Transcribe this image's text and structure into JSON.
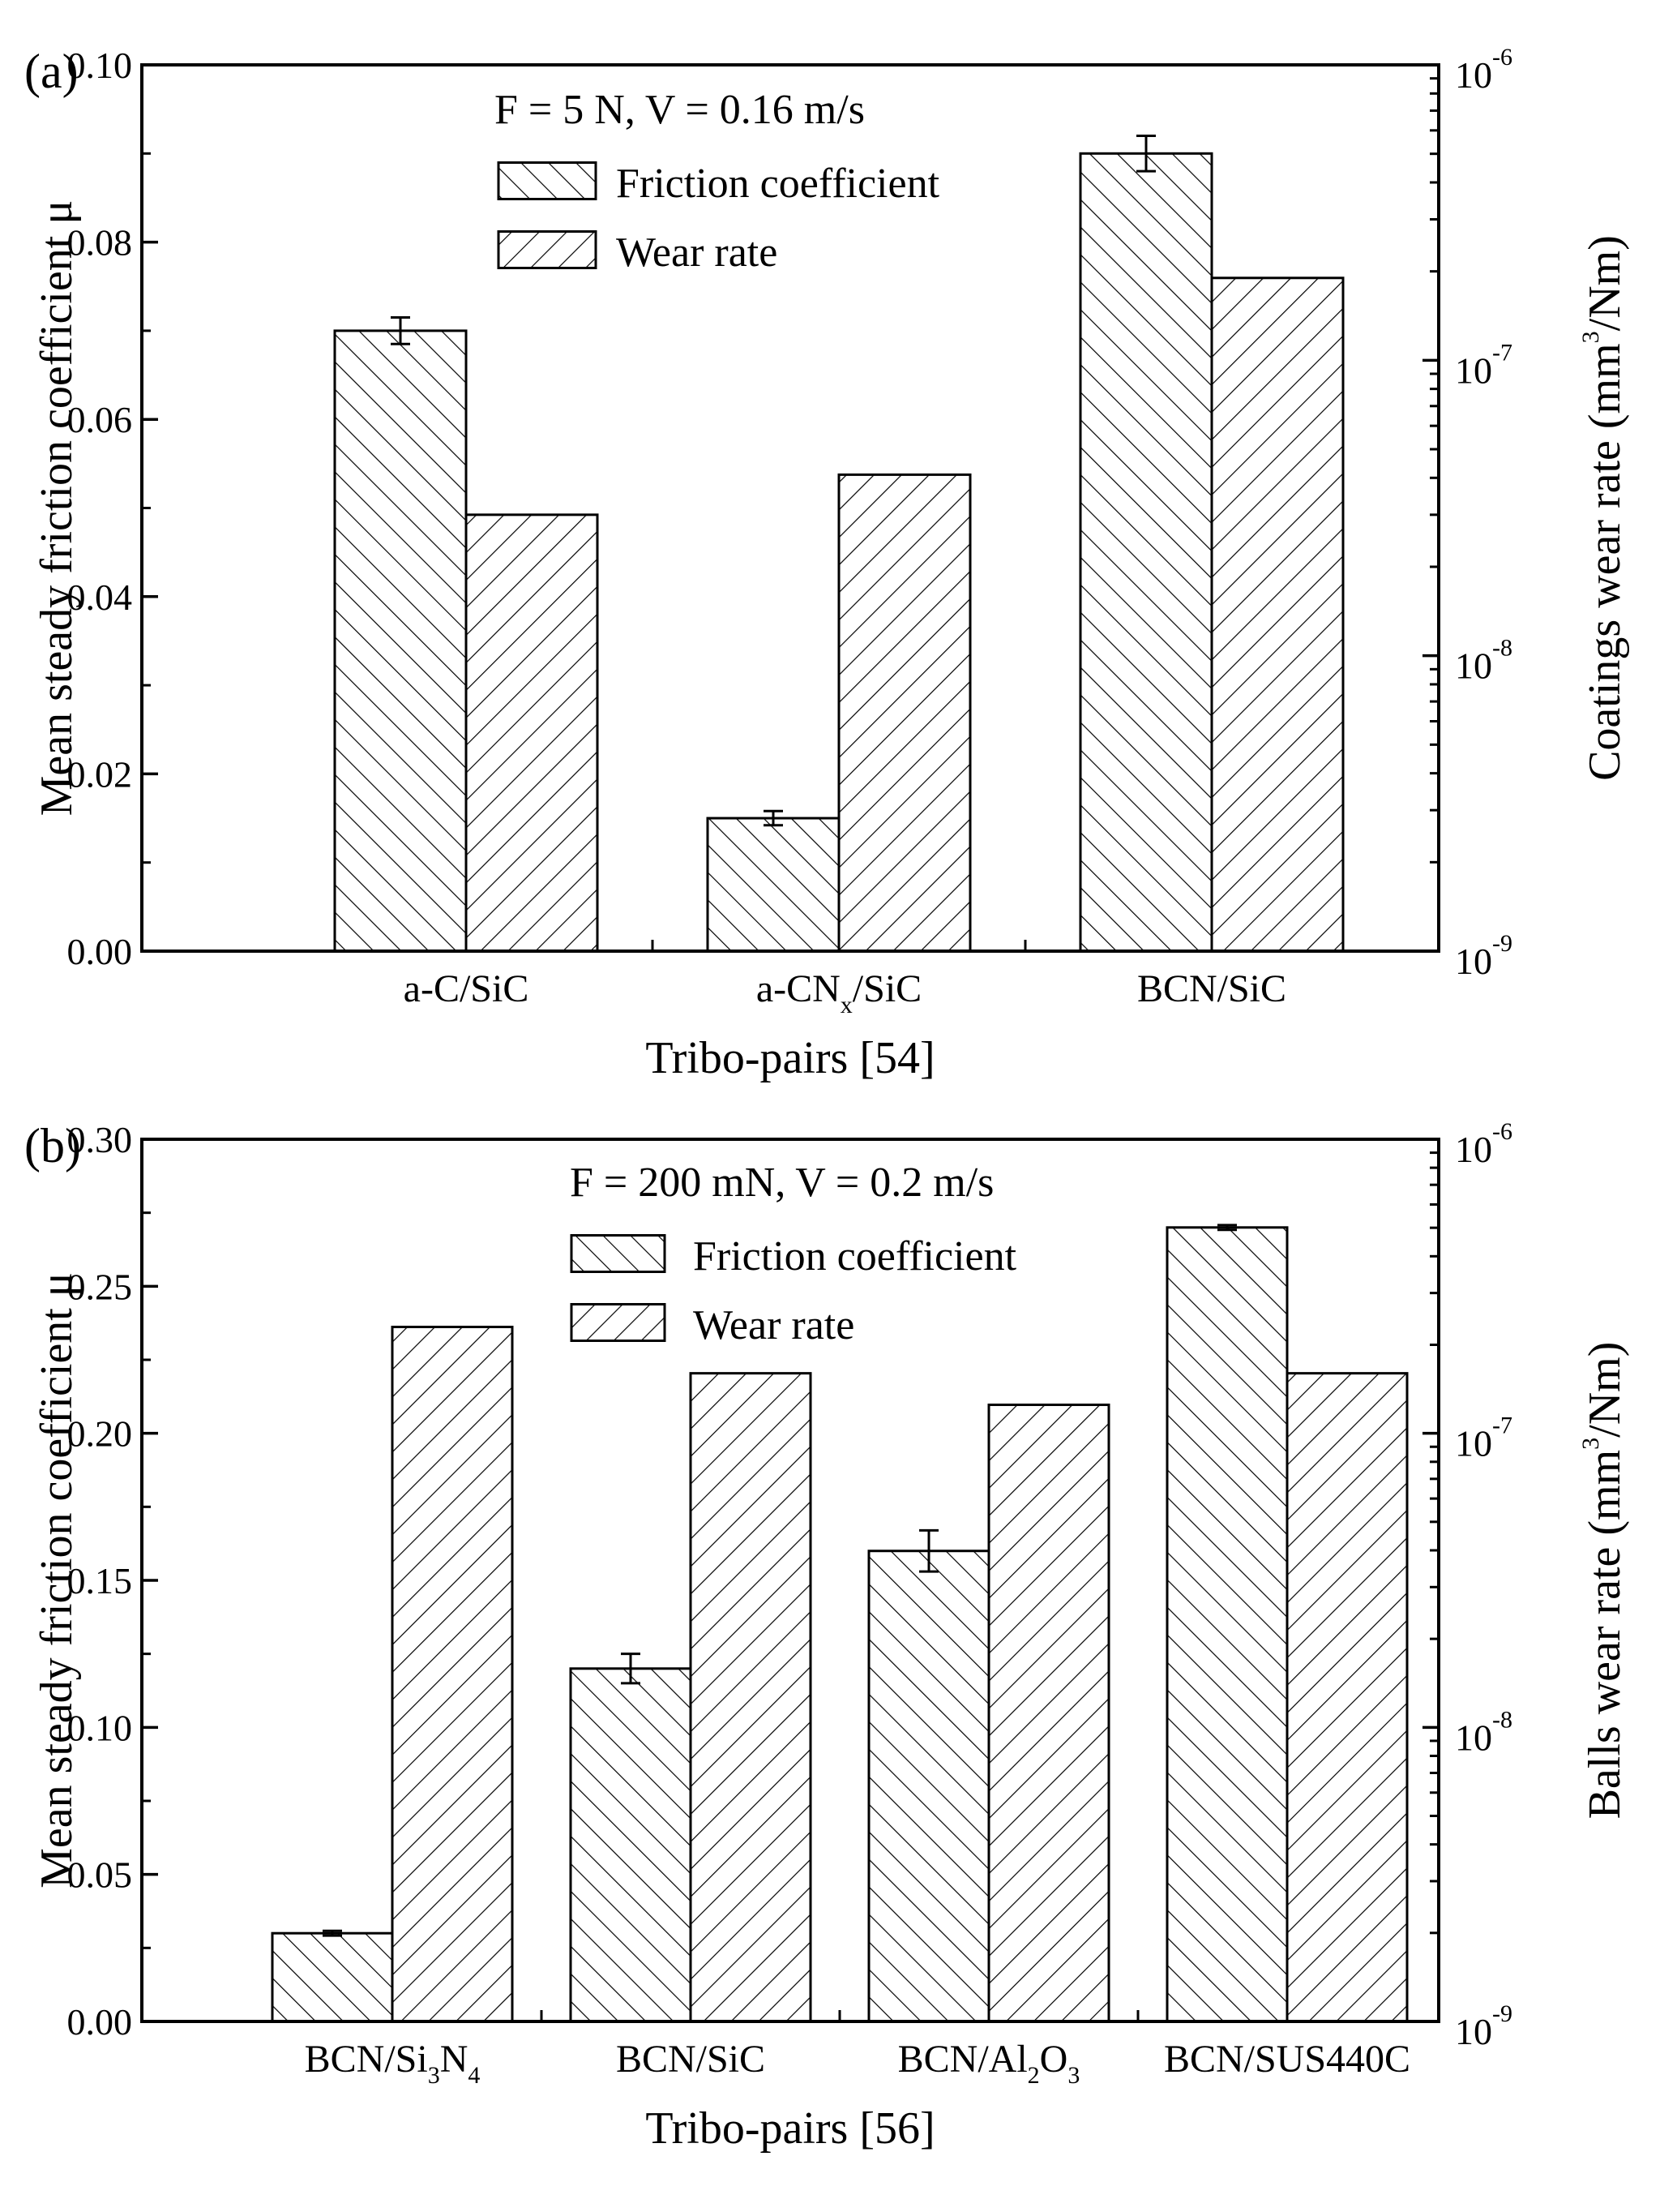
{
  "figure": {
    "bg": "#ffffff",
    "ink": "#000000"
  },
  "chart_data": [
    {
      "panel": "(a)",
      "type": "bar",
      "categories": [
        {
          "name": "a-C/SiC",
          "parts": [
            {
              "t": "a-C/SiC",
              "s": 0
            }
          ]
        },
        {
          "name": "a-CNx/SiC",
          "parts": [
            {
              "t": "a-CN",
              "s": 0
            },
            {
              "t": "x",
              "s": -1
            },
            {
              "t": "/SiC",
              "s": 0
            }
          ]
        },
        {
          "name": "BCN/SiC",
          "parts": [
            {
              "t": "BCN/SiC",
              "s": 0
            }
          ]
        }
      ],
      "series": [
        {
          "name": "Friction coefficient",
          "axis": "left",
          "values": [
            0.07,
            0.015,
            0.09
          ],
          "errors": [
            0.0015,
            0.0008,
            0.002
          ],
          "hatch": "back"
        },
        {
          "name": "Wear rate",
          "axis": "right",
          "values": [
            3e-08,
            4.1e-08,
            1.9e-07
          ],
          "hatch": "fwd"
        }
      ],
      "ylabel": "Mean steady friction coefficient μ",
      "ylim": [
        0,
        0.1
      ],
      "yticks": [
        "0.00",
        "0.02",
        "0.04",
        "0.06",
        "0.08",
        "0.10"
      ],
      "y2label": {
        "before": "Coatings wear rate (mm",
        "sup": "3",
        "after": "/Nm)"
      },
      "y2lim": [
        1e-09,
        1e-06
      ],
      "y2ticks": [
        {
          "base": "10",
          "exp": "-9"
        },
        {
          "base": "10",
          "exp": "-8"
        },
        {
          "base": "10",
          "exp": "-7"
        },
        {
          "base": "10",
          "exp": "-6"
        }
      ],
      "xlabel": "Tribo-pairs [54]",
      "legend_title": "F = 5 N, V = 0.16 m/s",
      "legend_position": "top-center"
    },
    {
      "panel": "(b)",
      "type": "bar",
      "categories": [
        {
          "name": "BCN/Si3N4",
          "parts": [
            {
              "t": "BCN/Si",
              "s": 0
            },
            {
              "t": "3",
              "s": -1
            },
            {
              "t": "N",
              "s": 0
            },
            {
              "t": "4",
              "s": -1
            }
          ]
        },
        {
          "name": "BCN/SiC",
          "parts": [
            {
              "t": "BCN/SiC",
              "s": 0
            }
          ]
        },
        {
          "name": "BCN/Al2O3",
          "parts": [
            {
              "t": "BCN/Al",
              "s": 0
            },
            {
              "t": "2",
              "s": -1
            },
            {
              "t": "O",
              "s": 0
            },
            {
              "t": "3",
              "s": -1
            }
          ]
        },
        {
          "name": "BCN/SUS440C",
          "parts": [
            {
              "t": "BCN/SUS440C",
              "s": 0
            }
          ]
        }
      ],
      "series": [
        {
          "name": "Friction coefficient",
          "axis": "left",
          "values": [
            0.03,
            0.12,
            0.16,
            0.27
          ],
          "errors": [
            0.0008,
            0.005,
            0.007,
            0.0008
          ],
          "hatch": "back"
        },
        {
          "name": "Wear rate",
          "axis": "right",
          "values": [
            2.3e-07,
            1.6e-07,
            1.25e-07,
            1.6e-07
          ],
          "hatch": "fwd"
        }
      ],
      "ylabel": "Mean steady friction coefficient μ",
      "ylim": [
        0,
        0.3
      ],
      "yticks": [
        "0.00",
        "0.05",
        "0.10",
        "0.15",
        "0.20",
        "0.25",
        "0.30"
      ],
      "y2label": {
        "before": "Balls wear rate (mm",
        "sup": "3",
        "after": "/Nm)"
      },
      "y2lim": [
        1e-09,
        1e-06
      ],
      "y2ticks": [
        {
          "base": "10",
          "exp": "-9"
        },
        {
          "base": "10",
          "exp": "-8"
        },
        {
          "base": "10",
          "exp": "-7"
        },
        {
          "base": "10",
          "exp": "-6"
        }
      ],
      "xlabel": "Tribo-pairs [56]",
      "legend_title": "F = 200 mN, V = 0.2 m/s",
      "legend_position": "top-center"
    }
  ]
}
